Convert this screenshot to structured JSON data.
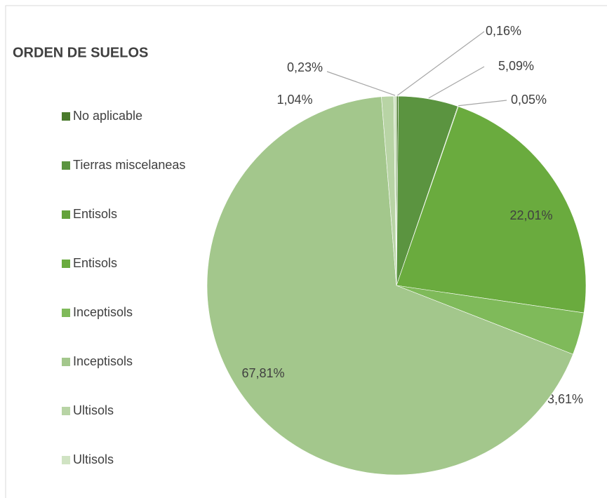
{
  "chart_data": {
    "type": "pie",
    "title": "ORDEN DE SUELOS",
    "categories": [
      "No aplicable",
      "Tierras miscelaneas",
      "Entisols",
      "Entisols",
      "Inceptisols",
      "Inceptisols",
      "Ultisols",
      "Ultisols"
    ],
    "values": [
      0.16,
      5.09,
      0.05,
      22.01,
      3.61,
      67.81,
      1.04,
      0.23
    ],
    "value_labels": [
      "0,16%",
      "5,09%",
      "0,05%",
      "22,01%",
      "3,61%",
      "67,81%",
      "1,04%",
      "0,23%"
    ],
    "colors": [
      "#4a7a2c",
      "#5b9440",
      "#63a23a",
      "#6aab3e",
      "#7fba5a",
      "#a3c78c",
      "#b8d4a5",
      "#d0e3c3"
    ],
    "legend": "left"
  }
}
